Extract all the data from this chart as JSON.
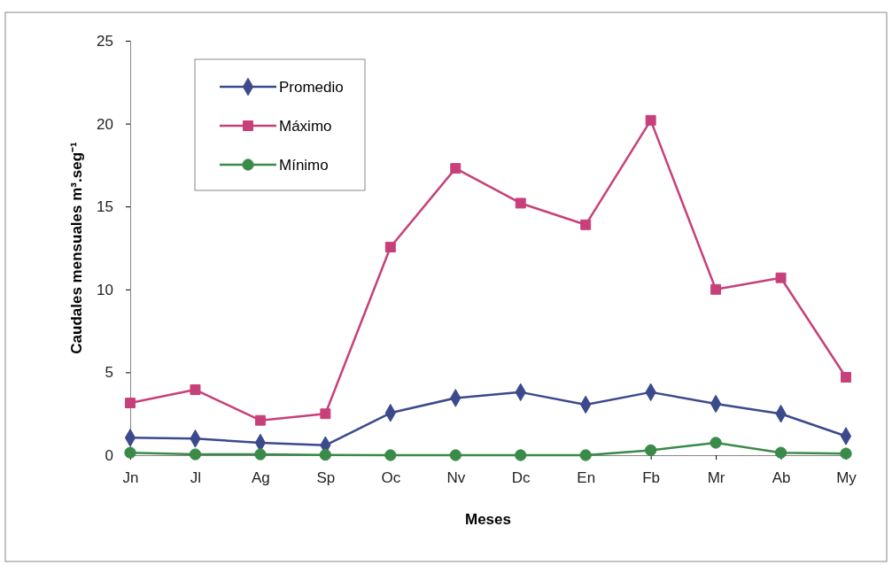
{
  "chart_data": {
    "type": "line",
    "xlabel": "Meses",
    "ylabel": "Caudales mensuales m³.seg⁻¹",
    "categories": [
      "Jn",
      "Jl",
      "Ag",
      "Sp",
      "Oc",
      "Nv",
      "Dc",
      "En",
      "Fb",
      "Mr",
      "Ab",
      "My"
    ],
    "ylim": [
      0,
      25
    ],
    "yticks": [
      0,
      5,
      10,
      15,
      20,
      25
    ],
    "grid": false,
    "legend": "top left",
    "series": [
      {
        "name": "Promedio",
        "color": "#3b4a8c",
        "marker": "diamond",
        "values": [
          1.05,
          1.0,
          0.75,
          0.6,
          2.55,
          3.45,
          3.8,
          3.05,
          3.8,
          3.1,
          2.5,
          1.15
        ]
      },
      {
        "name": "Máximo",
        "color": "#c8407a",
        "marker": "square",
        "values": [
          3.15,
          3.95,
          2.1,
          2.5,
          12.55,
          17.3,
          15.2,
          13.9,
          20.2,
          10.0,
          10.7,
          4.7
        ]
      },
      {
        "name": "Mínimo",
        "color": "#3a8a4a",
        "marker": "circle",
        "values": [
          0.15,
          0.05,
          0.05,
          0.02,
          0.0,
          0.0,
          0.0,
          0.0,
          0.3,
          0.75,
          0.15,
          0.1
        ]
      }
    ]
  }
}
